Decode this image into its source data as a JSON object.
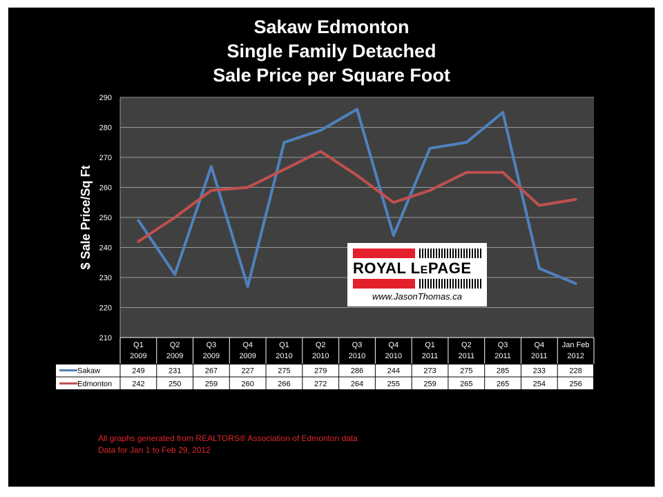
{
  "chart_data": {
    "type": "line",
    "title": [
      "Sakaw Edmonton",
      "Single Family Detached",
      "Sale Price per Square Foot"
    ],
    "xlabel": "",
    "ylabel": "$ Sale Price/Sq Ft",
    "ylim": [
      210,
      290
    ],
    "yticks": [
      210,
      220,
      230,
      240,
      250,
      260,
      270,
      280,
      290
    ],
    "grid": true,
    "categories": [
      [
        "Q1",
        "2009"
      ],
      [
        "Q2",
        "2009"
      ],
      [
        "Q3",
        "2009"
      ],
      [
        "Q4",
        "2009"
      ],
      [
        "Q1",
        "2010"
      ],
      [
        "Q2",
        "2010"
      ],
      [
        "Q3",
        "2010"
      ],
      [
        "Q4",
        "2010"
      ],
      [
        "Q1",
        "2011"
      ],
      [
        "Q2",
        "2011"
      ],
      [
        "Q3",
        "2011"
      ],
      [
        "Q4",
        "2011"
      ],
      [
        "Jan Feb",
        "2012"
      ]
    ],
    "series": [
      {
        "name": "Sakaw",
        "color": "#4f81bd",
        "values": [
          249,
          231,
          267,
          227,
          275,
          279,
          286,
          244,
          273,
          275,
          285,
          233,
          228
        ]
      },
      {
        "name": "Edmonton",
        "color": "#c0504d",
        "values": [
          242,
          250,
          259,
          260,
          266,
          272,
          264,
          255,
          259,
          265,
          265,
          254,
          256
        ]
      }
    ],
    "legend": "data-table"
  },
  "logo": {
    "brand_left": "ROYAL L",
    "brand_small": "E",
    "brand_right": "PAGE",
    "url": "www.JasonThomas.ca"
  },
  "footnotes": [
    "All graphs generated from REALTORS® Association of Edmonton data",
    "Data for Jan 1 to Feb 29, 2012"
  ]
}
